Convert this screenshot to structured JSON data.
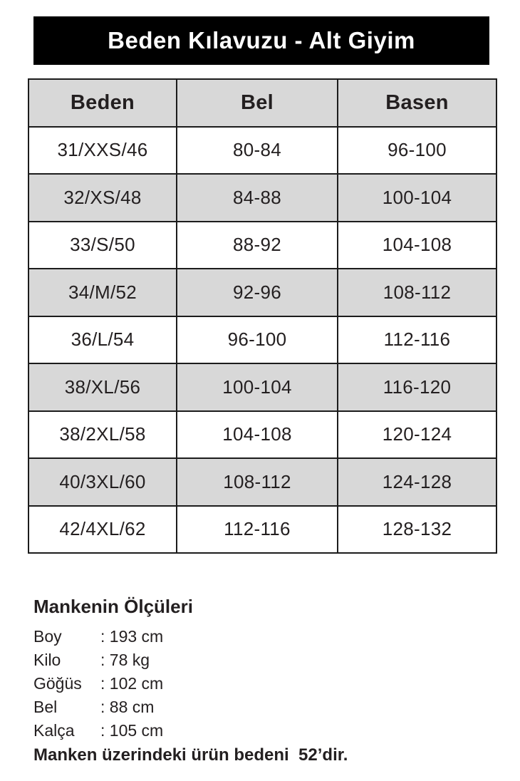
{
  "title": {
    "text": "Beden Kılavuzu - Alt Giyim",
    "background": "#000000",
    "color": "#ffffff"
  },
  "table": {
    "headers": [
      "Beden",
      "Bel",
      "Basen"
    ],
    "rows": [
      [
        "31/XXS/46",
        "80-84",
        "96-100"
      ],
      [
        "32/XS/48",
        "84-88",
        "100-104"
      ],
      [
        "33/S/50",
        "88-92",
        "104-108"
      ],
      [
        "34/M/52",
        "92-96",
        "108-112"
      ],
      [
        "36/L/54",
        "96-100",
        "112-116"
      ],
      [
        "38/XL/56",
        "100-104",
        "116-120"
      ],
      [
        "38/2XL/58",
        "104-108",
        "120-124"
      ],
      [
        "40/3XL/60",
        "108-112",
        "124-128"
      ],
      [
        "42/4XL/62",
        "112-116",
        "128-132"
      ]
    ],
    "stripe_color": "#d8d8d8",
    "border_color": "#1c1c1c"
  },
  "chart_data": {
    "type": "table",
    "title": "Beden Kılavuzu - Alt Giyim",
    "columns": [
      "Beden",
      "Bel",
      "Basen"
    ],
    "rows": [
      [
        "31/XXS/46",
        "80-84",
        "96-100"
      ],
      [
        "32/XS/48",
        "84-88",
        "100-104"
      ],
      [
        "33/S/50",
        "88-92",
        "104-108"
      ],
      [
        "34/M/52",
        "92-96",
        "108-112"
      ],
      [
        "36/L/54",
        "96-100",
        "112-116"
      ],
      [
        "38/XL/56",
        "100-104",
        "116-120"
      ],
      [
        "38/2XL/58",
        "104-108",
        "120-124"
      ],
      [
        "40/3XL/60",
        "108-112",
        "124-128"
      ],
      [
        "42/4XL/62",
        "112-116",
        "128-132"
      ]
    ]
  },
  "model": {
    "heading": "Mankenin Ölçüleri",
    "measurements": [
      {
        "label": "Boy",
        "value": ": 193 cm"
      },
      {
        "label": "Kilo",
        "value": ": 78 kg"
      },
      {
        "label": "Göğüs",
        "value": ": 102 cm"
      },
      {
        "label": "Bel",
        "value": ": 88 cm"
      },
      {
        "label": "Kalça",
        "value": ": 105 cm"
      }
    ],
    "note": "Manken üzerindeki ürün bedeni  52’dir."
  }
}
